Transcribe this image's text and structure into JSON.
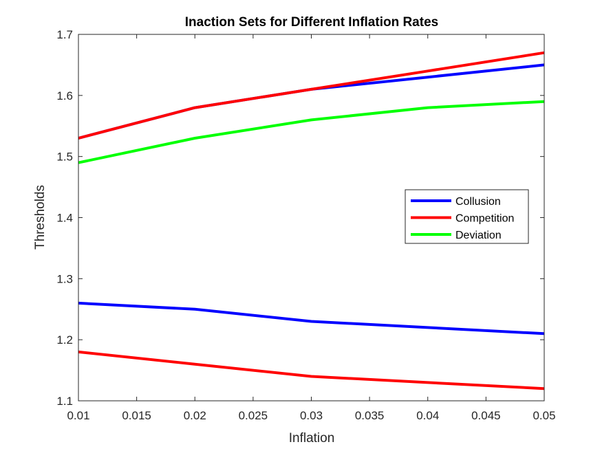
{
  "chart_data": {
    "type": "line",
    "title": "Inaction Sets for Different Inflation Rates",
    "xlabel": "Inflation",
    "ylabel": "Thresholds",
    "xlim": [
      0.01,
      0.05
    ],
    "ylim": [
      1.1,
      1.7
    ],
    "xticks": [
      "0.01",
      "0.015",
      "0.02",
      "0.025",
      "0.03",
      "0.035",
      "0.04",
      "0.045",
      "0.05"
    ],
    "yticks": [
      "1.1",
      "1.2",
      "1.3",
      "1.4",
      "1.5",
      "1.6",
      "1.7"
    ],
    "grid": false,
    "legend": {
      "position": "right-middle",
      "entries": [
        "Collusion",
        "Competition",
        "Deviation"
      ]
    },
    "x": [
      0.01,
      0.02,
      0.03,
      0.04,
      0.05
    ],
    "series": [
      {
        "name": "Collusion",
        "color": "#0000ff",
        "values": [
          1.53,
          1.58,
          1.61,
          1.63,
          1.65
        ]
      },
      {
        "name": "Collusion",
        "color": "#0000ff",
        "values": [
          1.26,
          1.25,
          1.23,
          1.22,
          1.21
        ]
      },
      {
        "name": "Competition",
        "color": "#ff0000",
        "values": [
          1.53,
          1.58,
          1.61,
          1.64,
          1.67
        ]
      },
      {
        "name": "Competition",
        "color": "#ff0000",
        "values": [
          1.18,
          1.16,
          1.14,
          1.13,
          1.12
        ]
      },
      {
        "name": "Deviation",
        "color": "#00ff00",
        "values": [
          1.49,
          1.53,
          1.56,
          1.58,
          1.59
        ]
      }
    ],
    "legend_colors": [
      "#0000ff",
      "#ff0000",
      "#00ff00"
    ]
  }
}
